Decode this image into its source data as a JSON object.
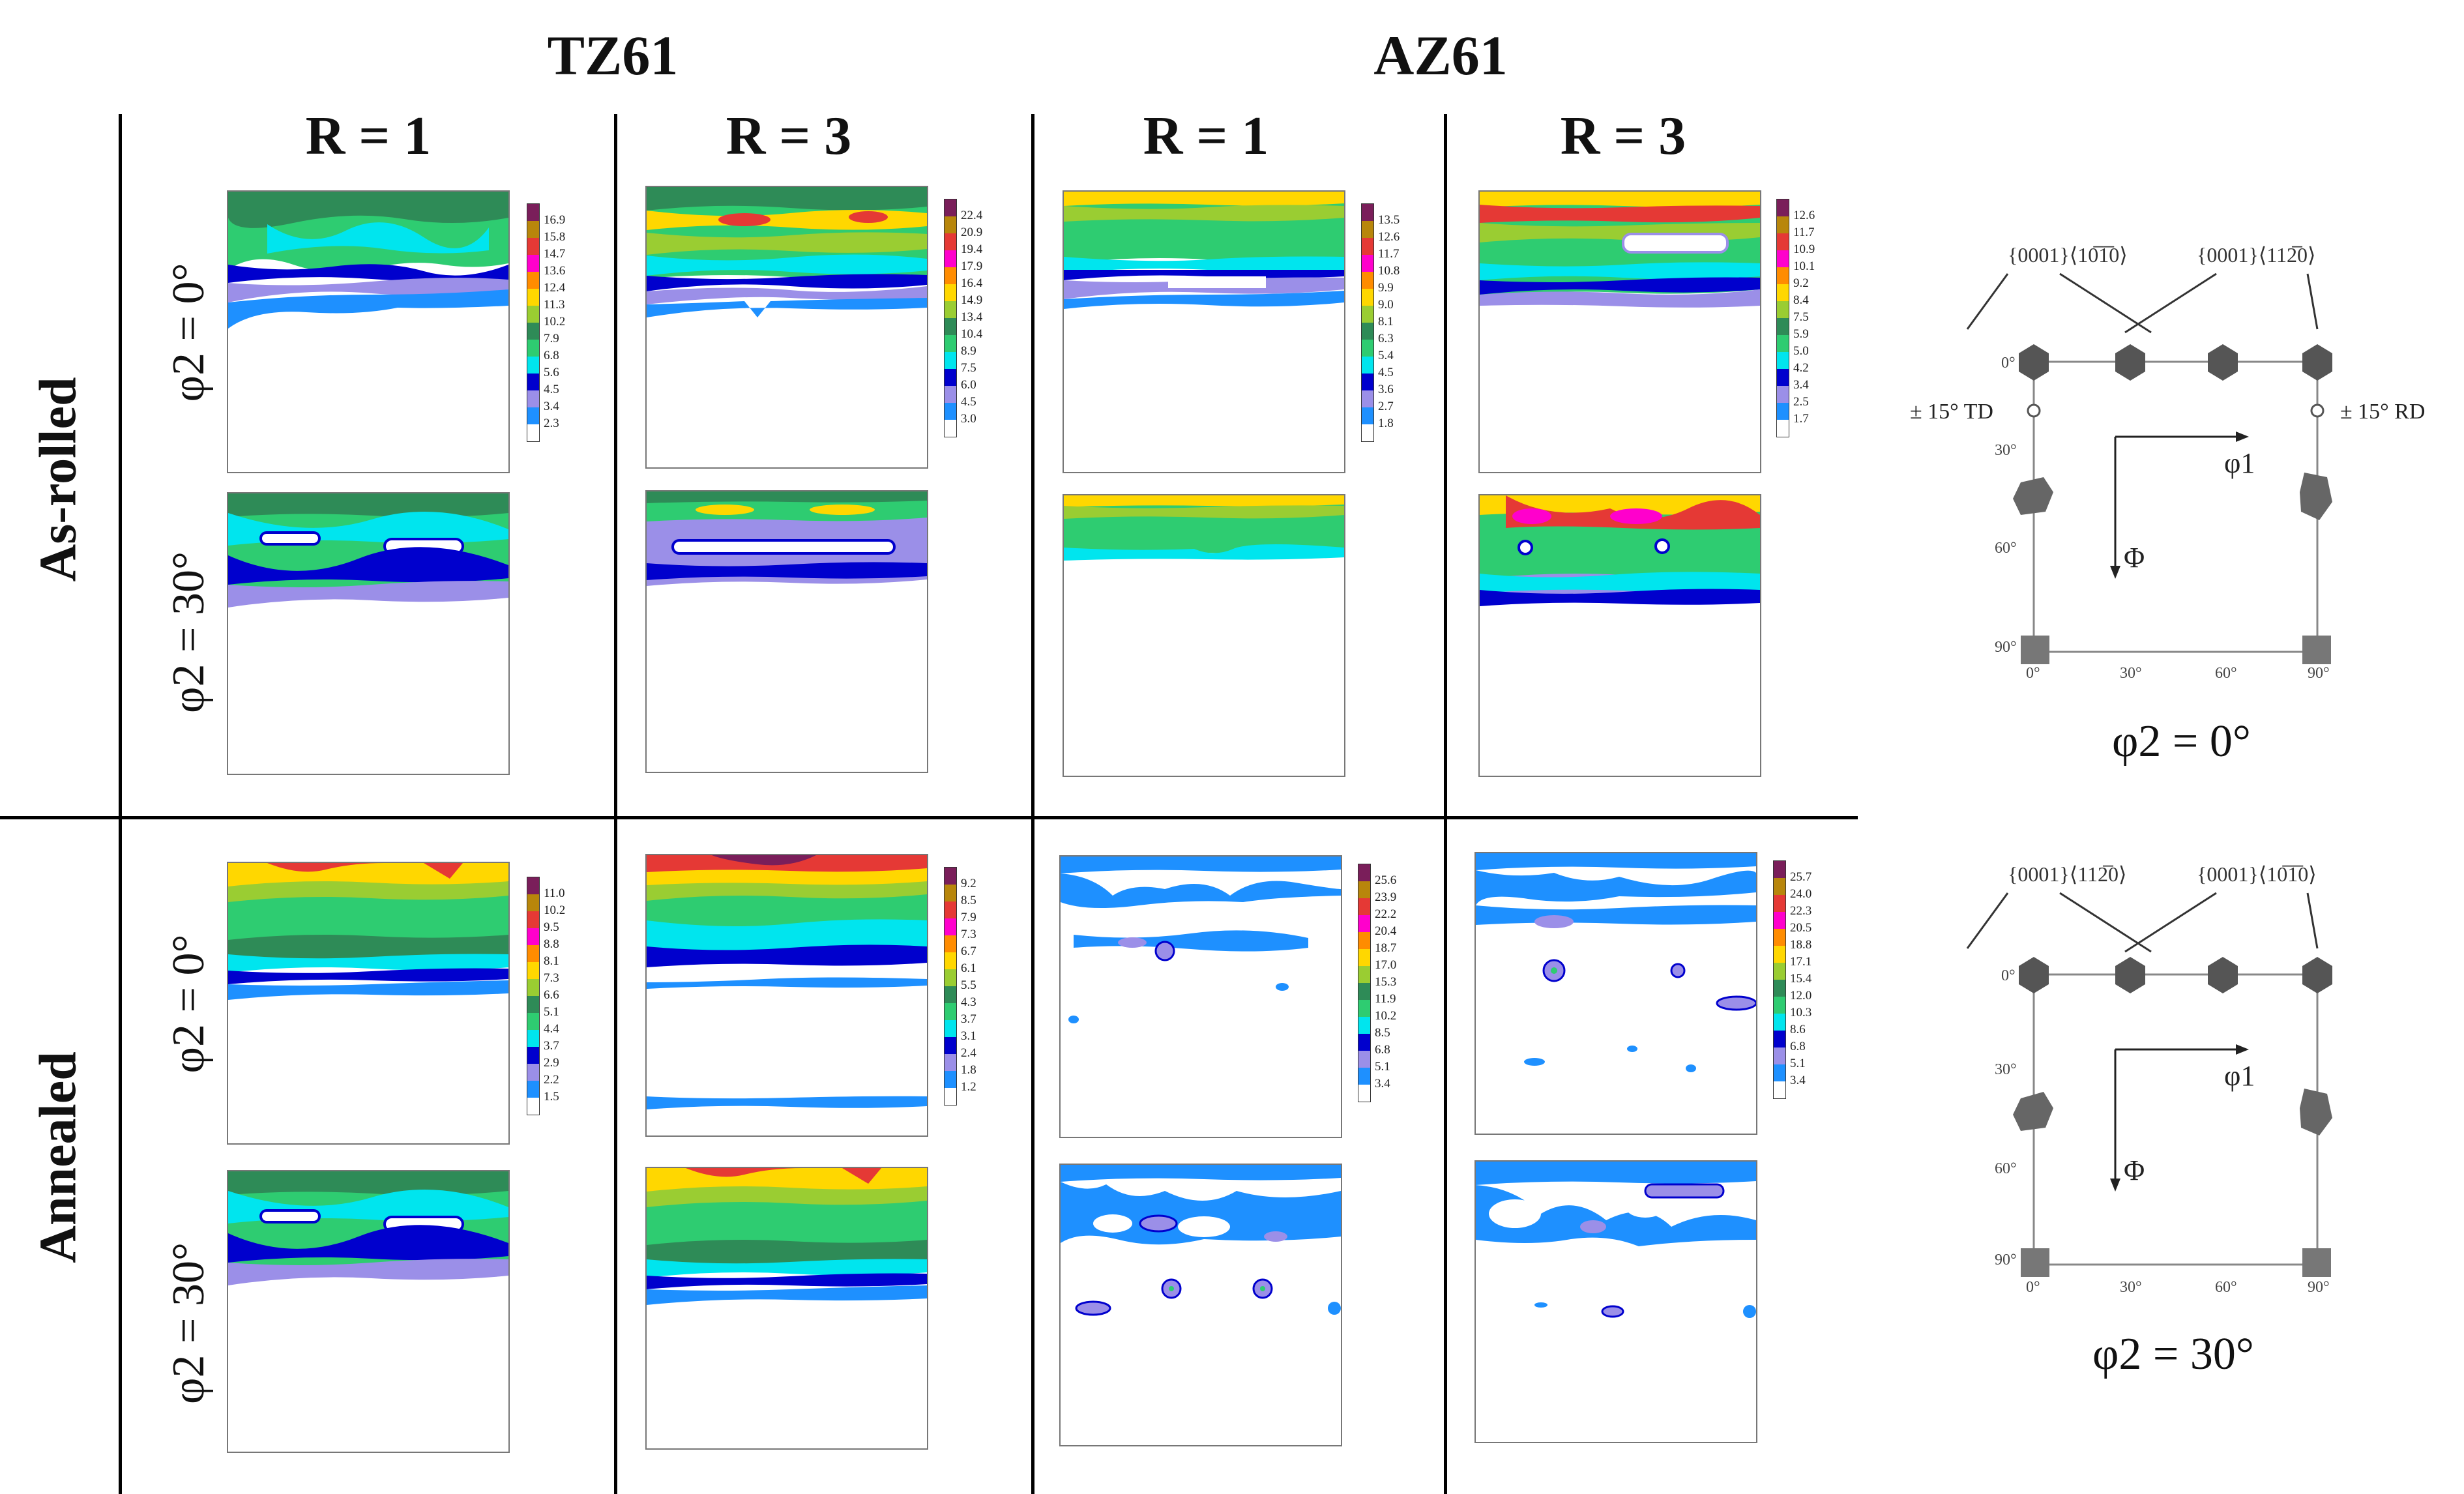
{
  "columns": {
    "alloys": [
      "TZ61",
      "AZ61"
    ],
    "r_labels": [
      "R = 1",
      "R = 3",
      "R = 1",
      "R = 3"
    ]
  },
  "rows": {
    "states": [
      "As-rolled",
      "Annealed"
    ],
    "phi2_labels": [
      "φ2 = 0°",
      "φ2 = 30°",
      "φ2 = 0°",
      "φ2 = 30°"
    ]
  },
  "colorbars": [
    {
      "name": "as-rolled-tz61-r1",
      "ticks": [
        "16.9",
        "15.8",
        "14.7",
        "13.6",
        "12.4",
        "11.3",
        "10.2",
        "7.9",
        "6.8",
        "5.6",
        "4.5",
        "3.4",
        "2.3"
      ]
    },
    {
      "name": "as-rolled-tz61-r3",
      "ticks": [
        "22.4",
        "20.9",
        "19.4",
        "17.9",
        "16.4",
        "14.9",
        "13.4",
        "10.4",
        "8.9",
        "7.5",
        "6.0",
        "4.5",
        "3.0"
      ]
    },
    {
      "name": "as-rolled-az61-r1",
      "ticks": [
        "13.5",
        "12.6",
        "11.7",
        "10.8",
        "9.9",
        "9.0",
        "8.1",
        "6.3",
        "5.4",
        "4.5",
        "3.6",
        "2.7",
        "1.8"
      ]
    },
    {
      "name": "as-rolled-az61-r3",
      "ticks": [
        "12.6",
        "11.7",
        "10.9",
        "10.1",
        "9.2",
        "8.4",
        "7.5",
        "5.9",
        "5.0",
        "4.2",
        "3.4",
        "2.5",
        "1.7"
      ]
    },
    {
      "name": "annealed-tz61-r1",
      "ticks": [
        "11.0",
        "10.2",
        "9.5",
        "8.8",
        "8.1",
        "7.3",
        "6.6",
        "5.1",
        "4.4",
        "3.7",
        "2.9",
        "2.2",
        "1.5"
      ]
    },
    {
      "name": "annealed-tz61-r3",
      "ticks": [
        "9.2",
        "8.5",
        "7.9",
        "7.3",
        "6.7",
        "6.1",
        "5.5",
        "4.3",
        "3.7",
        "3.1",
        "2.4",
        "1.8",
        "1.2"
      ]
    },
    {
      "name": "annealed-az61-r1",
      "ticks": [
        "25.6",
        "23.9",
        "22.2",
        "20.4",
        "18.7",
        "17.0",
        "15.3",
        "11.9",
        "10.2",
        "8.5",
        "6.8",
        "5.1",
        "3.4"
      ]
    },
    {
      "name": "annealed-az61-r3",
      "ticks": [
        "25.7",
        "24.0",
        "22.3",
        "20.5",
        "18.8",
        "17.1",
        "15.4",
        "12.0",
        "10.3",
        "8.6",
        "6.8",
        "5.1",
        "3.4"
      ]
    }
  ],
  "colorbar_colors": [
    "#7a1e5a",
    "#b8860b",
    "#e53935",
    "#ff00cc",
    "#ff8c00",
    "#ffd700",
    "#9acd32",
    "#2e8b57",
    "#2ecc71",
    "#00e5ee",
    "#0000cd",
    "#9b8fe8",
    "#1e90ff",
    "#ffffff"
  ],
  "legend": {
    "top": {
      "label_left": "{0001}⟨10̅1̅0⟩",
      "label_right": "{0001}⟨112̅0⟩",
      "td_label": "± 15° TD",
      "rd_label": "± 15° RD",
      "phi1": "φ1",
      "Phi": "Φ",
      "angles_left": [
        "0°",
        "30°",
        "60°",
        "90°"
      ],
      "angles_bottom": [
        "0°",
        "30°",
        "60°",
        "90°"
      ],
      "caption": "φ2 = 0°"
    },
    "bottom": {
      "label_left": "{0001}⟨112̅0⟩",
      "label_right": "{0001}⟨10̅1̅0⟩",
      "phi1": "φ1",
      "Phi": "Φ",
      "angles_left": [
        "0°",
        "30°",
        "60°",
        "90°"
      ],
      "angles_bottom": [
        "0°",
        "30°",
        "60°",
        "90°"
      ],
      "caption": "φ2 = 30°"
    }
  }
}
